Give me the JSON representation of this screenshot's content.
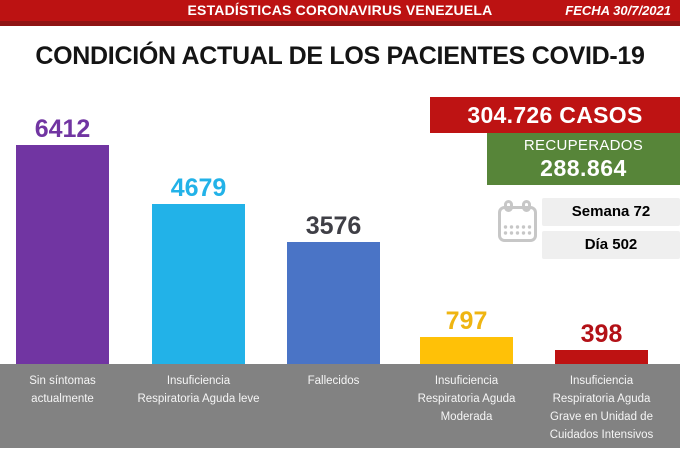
{
  "header": {
    "title": "ESTADÍSTICAS CORONAVIRUS VENEZUELA",
    "date": "FECHA 30/7/2021"
  },
  "main_title": "CONDICIÓN ACTUAL DE LOS PACIENTES COVID-19",
  "stats": {
    "cases_banner": "304.726 CASOS",
    "recovered_label": "RECUPERADOS",
    "recovered_value": "288.864",
    "week_label": "Semana 72",
    "day_label": "Día 502",
    "calendar_icon": "calendar-icon"
  },
  "colors": {
    "banner_red": "#BC1212",
    "banner_red_dark": "#8F1414",
    "cases_red": "#BE1313",
    "recovered_green": "#578539",
    "gray_band": "#828282",
    "light_gray_box": "#EFEFEF",
    "calendar_gray": "#C7C7C7"
  },
  "chart_data": {
    "type": "bar",
    "title": "CONDICIÓN ACTUAL DE LOS PACIENTES COVID-19",
    "categories": [
      "Sin síntomas actualmente",
      "Insuficiencia Respiratoria Aguda leve",
      "Fallecidos",
      "Insuficiencia Respiratoria Aguda Moderada",
      "Insuficiencia Respiratoria Aguda Grave en Unidad de Cuidados Intensivos"
    ],
    "category_lines": [
      [
        "Sin síntomas",
        "actualmente"
      ],
      [
        "Insuficiencia",
        "Respiratoria Aguda leve"
      ],
      [
        "Fallecidos"
      ],
      [
        "Insuficiencia",
        "Respiratoria Aguda",
        "Moderada"
      ],
      [
        "Insuficiencia",
        "Respiratoria Aguda",
        "Grave en Unidad de",
        "Cuidados Intensivos"
      ]
    ],
    "values": [
      6412,
      4679,
      3576,
      797,
      398
    ],
    "bar_colors": [
      "#7135A2",
      "#22B2E8",
      "#4A74C6",
      "#FFC107",
      "#BE1212"
    ],
    "value_label_colors": [
      "#7135A2",
      "#22B2E8",
      "#3F3F46",
      "#EFB512",
      "#B31117"
    ],
    "xlabel": "",
    "ylabel": "",
    "ylim": [
      0,
      6412
    ],
    "grid": false,
    "legend": "none",
    "data_labels": "above-bars"
  }
}
